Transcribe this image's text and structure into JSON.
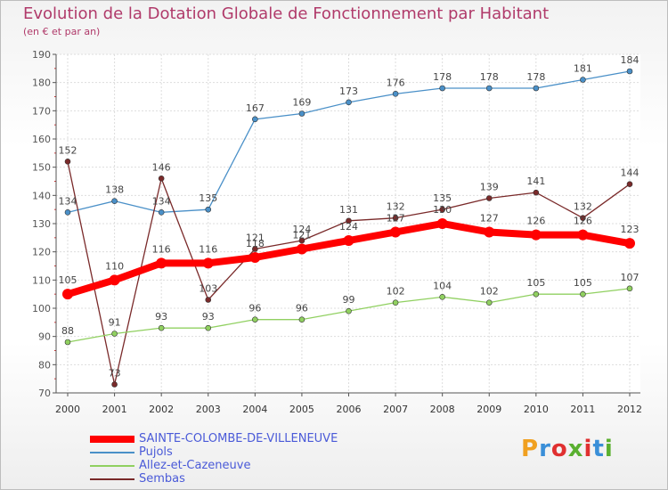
{
  "title": "Evolution de la Dotation Globale de Fonctionnement par Habitant",
  "subtitle": "(en € et par an)",
  "logo": {
    "text": "Proxiti",
    "letter_colors": [
      "#f0a020",
      "#3a8fd8",
      "#e03030",
      "#5ab030",
      "#e03030",
      "#3a8fd8",
      "#5ab030"
    ]
  },
  "chart_data": {
    "type": "line",
    "title": "Evolution de la Dotation Globale de Fonctionnement par Habitant",
    "xlabel": "",
    "ylabel": "(en € et par an)",
    "ylim": [
      70,
      190
    ],
    "yticks": [
      70,
      80,
      90,
      100,
      110,
      120,
      130,
      140,
      150,
      160,
      170,
      180,
      190
    ],
    "grid": true,
    "legend_position": "bottom-left",
    "categories": [
      "2000",
      "2001",
      "2002",
      "2003",
      "2004",
      "2005",
      "2006",
      "2007",
      "2008",
      "2009",
      "2010",
      "2011",
      "2012"
    ],
    "series": [
      {
        "name": "SAINTE-COLOMBE-DE-VILLENEUVE",
        "color": "#ff0000",
        "values": [
          105,
          110,
          116,
          116,
          118,
          121,
          124,
          127,
          130,
          127,
          126,
          126,
          123
        ],
        "labels": [
          "105",
          "110",
          "116",
          "116",
          "118",
          "121",
          "124",
          "127",
          "130",
          "127",
          "126",
          "126",
          "123"
        ]
      },
      {
        "name": "Pujols",
        "color": "#4a90c8",
        "values": [
          134,
          138,
          134,
          135,
          167,
          169,
          173,
          176,
          178,
          178,
          178,
          181,
          184
        ],
        "labels": [
          "134",
          "138",
          "134",
          "135",
          "167",
          "169",
          "173",
          "176",
          "178",
          "178",
          "178",
          "181",
          "184"
        ]
      },
      {
        "name": "Allez-et-Cazeneuve",
        "color": "#90d060",
        "values": [
          88,
          91,
          93,
          93,
          96,
          96,
          99,
          102,
          104,
          102,
          105,
          105,
          107
        ],
        "labels": [
          "88",
          "91",
          "93",
          "93",
          "96",
          "96",
          "99",
          "102",
          "104",
          "102",
          "105",
          "105",
          "107"
        ]
      },
      {
        "name": "Sembas",
        "color": "#7a2a2a",
        "values": [
          152,
          73,
          146,
          103,
          121,
          124,
          131,
          132,
          135,
          139,
          141,
          132,
          144
        ],
        "labels": [
          "152",
          "73",
          "146",
          "103",
          "121",
          "124",
          "131",
          "132",
          "135",
          "139",
          "141",
          "132",
          "144"
        ]
      }
    ]
  }
}
